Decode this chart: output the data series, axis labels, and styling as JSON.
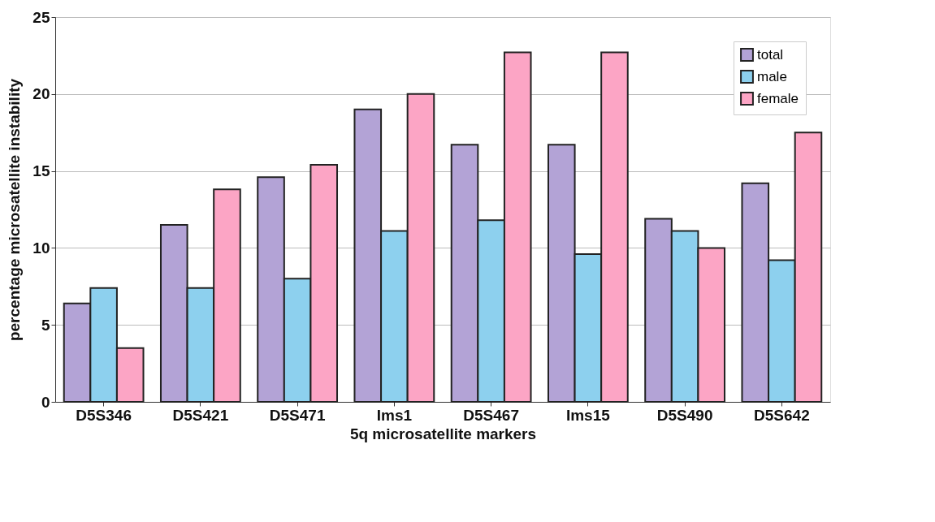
{
  "chart_data": {
    "type": "bar",
    "xlabel": "5q microsatellite markers",
    "ylabel": "percentage microsatellite instability",
    "categories": [
      "D5S346",
      "D5S421",
      "D5S471",
      "Ims1",
      "D5S467",
      "Ims15",
      "D5S490",
      "D5S642"
    ],
    "series": [
      {
        "name": "total",
        "color": "#b3a3d6",
        "values": [
          6.4,
          11.5,
          14.6,
          19.0,
          16.7,
          16.7,
          11.9,
          14.2
        ]
      },
      {
        "name": "male",
        "color": "#8dd0ee",
        "values": [
          7.4,
          7.4,
          8.0,
          11.1,
          11.8,
          9.6,
          11.1,
          9.2
        ]
      },
      {
        "name": "female",
        "color": "#fca5c5",
        "values": [
          3.5,
          13.8,
          15.4,
          20.0,
          22.7,
          22.7,
          10.0,
          17.5
        ]
      }
    ],
    "ylim": [
      0,
      25
    ],
    "yticks": [
      0,
      5,
      10,
      15,
      20,
      25
    ],
    "grid": "y",
    "legend": "top right"
  }
}
